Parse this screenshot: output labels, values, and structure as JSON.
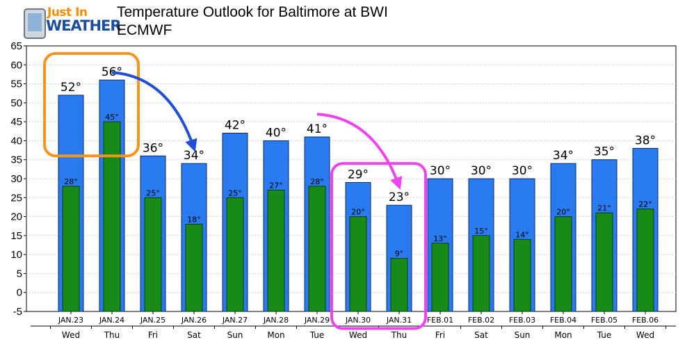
{
  "logo": {
    "line1": "Just In",
    "line2": "WEATHER",
    "icon": "phone-icon",
    "colors": {
      "line1": "#f28c00",
      "line2": "#1b4f9c"
    }
  },
  "header": {
    "title": "Temperature Outlook for Baltimore at BWI",
    "model": "ECMWF"
  },
  "chart_data": {
    "type": "bar",
    "categories": [
      "JAN.23",
      "JAN.24",
      "JAN.25",
      "JAN.26",
      "JAN.27",
      "JAN.28",
      "JAN.29",
      "JAN.30",
      "JAN.31",
      "FEB.01",
      "FEB.02",
      "FEB.03",
      "FEB.04",
      "FEB.05",
      "FEB.06"
    ],
    "day_labels": [
      "Wed",
      "Thu",
      "Fri",
      "Sat",
      "Sun",
      "Mon",
      "Tue",
      "Wed",
      "Thu",
      "Fri",
      "Sat",
      "Sun",
      "Mon",
      "Tue",
      "Wed"
    ],
    "series": [
      {
        "values": [
          52,
          56,
          36,
          34,
          42,
          40,
          41,
          29,
          23,
          30,
          30,
          30,
          34,
          35,
          38
        ],
        "labels": [
          "52°",
          "56°",
          "36°",
          "34°",
          "42°",
          "40°",
          "41°",
          "29°",
          "23°",
          "30°",
          "30°",
          "30°",
          "34°",
          "35°",
          "38°"
        ],
        "color": "#2b7bf0"
      },
      {
        "values": [
          28,
          45,
          25,
          18,
          25,
          27,
          28,
          20,
          9,
          13,
          15,
          14,
          20,
          21,
          22
        ],
        "labels": [
          "28°",
          "45°",
          "25°",
          "18°",
          "25°",
          "27°",
          "28°",
          "20°",
          "9°",
          "13°",
          "15°",
          "14°",
          "20°",
          "21°",
          "22°"
        ],
        "color": "#178a17"
      }
    ],
    "y_ticks": [
      -5,
      0,
      5,
      10,
      15,
      20,
      25,
      30,
      35,
      40,
      45,
      50,
      55,
      60,
      65
    ],
    "ylim": [
      -5,
      65
    ],
    "grid": true,
    "annotations": [
      {
        "type": "rounded-box",
        "color": "#f7941d",
        "categories": [
          "JAN.23",
          "JAN.24"
        ],
        "y_range": [
          36,
          63
        ]
      },
      {
        "type": "rounded-box",
        "color": "#ee44ee",
        "categories": [
          "JAN.30",
          "JAN.31"
        ],
        "y_range": [
          -9.5,
          34
        ]
      },
      {
        "type": "arrow",
        "color": "#1f4fd6",
        "from": {
          "category": "JAN.24",
          "value": 58
        },
        "to": {
          "category": "JAN.26",
          "value": 38
        }
      },
      {
        "type": "arrow",
        "color": "#ee44ee",
        "from": {
          "category": "JAN.29",
          "value": 47
        },
        "to": {
          "category": "JAN.31",
          "value": 28
        }
      }
    ]
  }
}
